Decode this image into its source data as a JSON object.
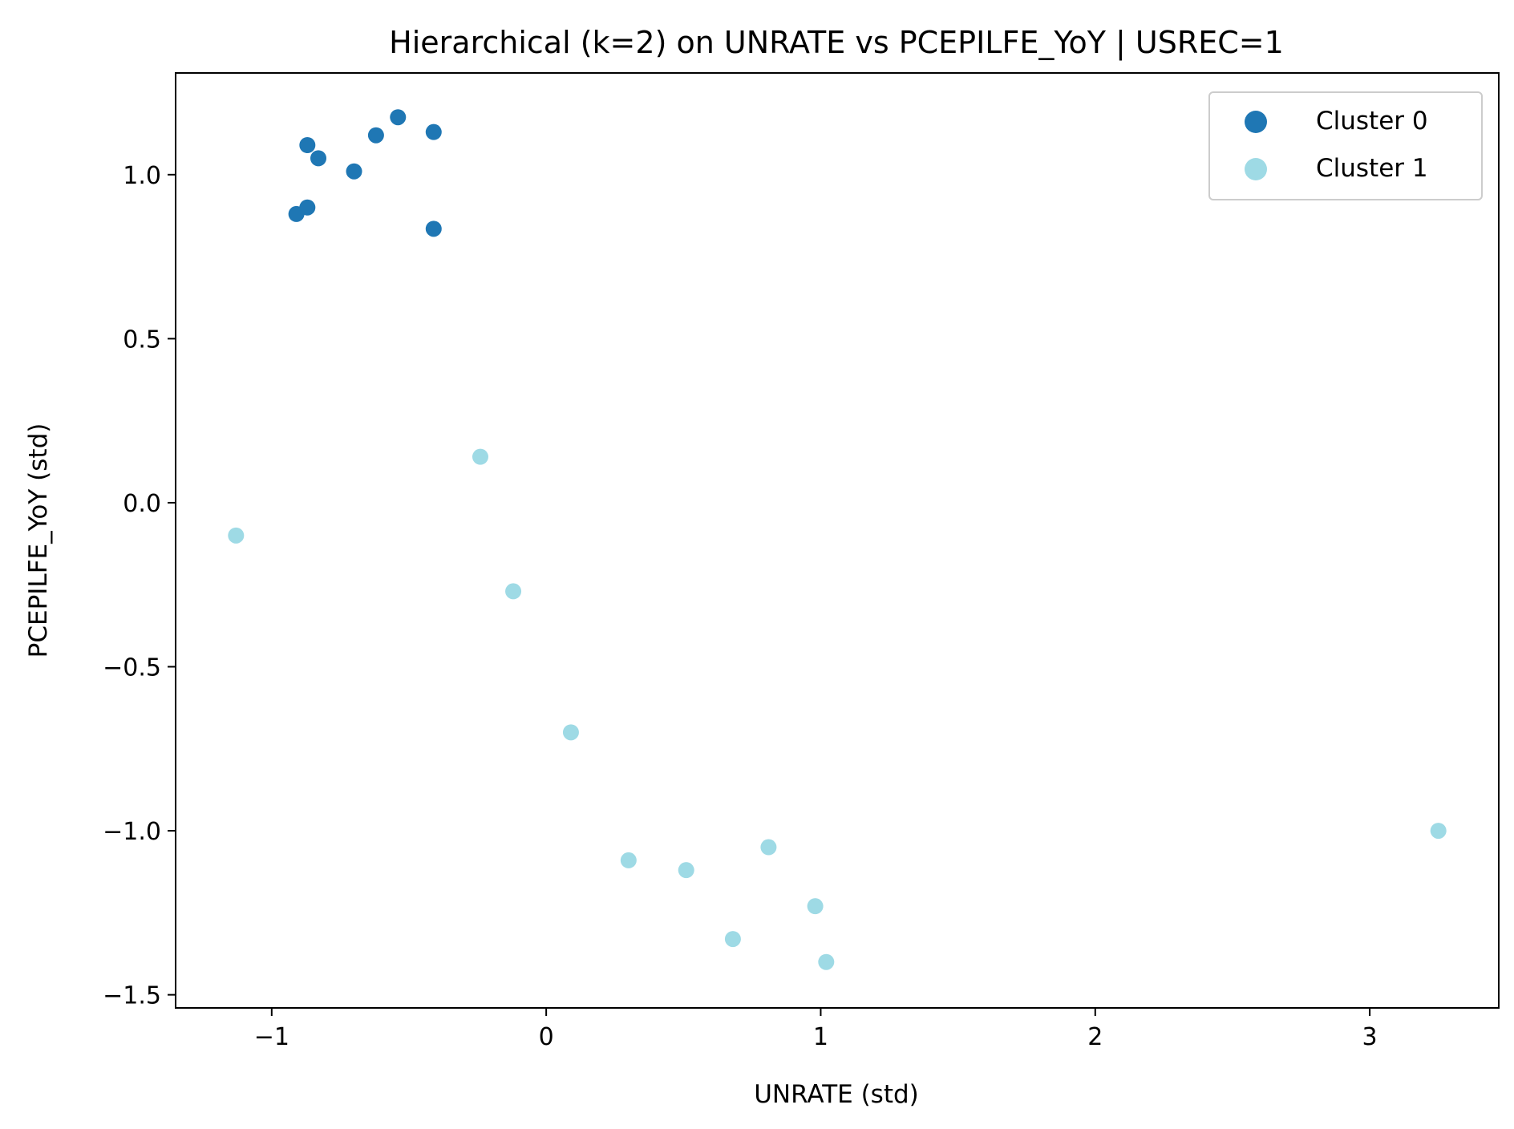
{
  "chart_data": {
    "type": "scatter",
    "title": "Hierarchical (k=2) on UNRATE vs PCEPILFE_YoY | USREC=1",
    "xlabel": "UNRATE (std)",
    "ylabel": "PCEPILFE_YoY (std)",
    "xlim": [
      -1.35,
      3.47
    ],
    "ylim": [
      -1.54,
      1.31
    ],
    "xticks": [
      -1,
      0,
      1,
      2,
      3
    ],
    "xtick_labels": [
      "−1",
      "0",
      "1",
      "2",
      "3"
    ],
    "yticks": [
      -1.5,
      -1.0,
      -0.5,
      0.0,
      0.5,
      1.0
    ],
    "ytick_labels": [
      "−1.5",
      "−1.0",
      "−0.5",
      "0.0",
      "0.5",
      "1.0"
    ],
    "grid": false,
    "legend_position": "top-right",
    "series": [
      {
        "name": "Cluster 0",
        "color": "#1f77b4",
        "points": [
          [
            -0.54,
            1.175
          ],
          [
            -0.41,
            1.13
          ],
          [
            -0.62,
            1.12
          ],
          [
            -0.87,
            1.09
          ],
          [
            -0.83,
            1.05
          ],
          [
            -0.7,
            1.01
          ],
          [
            -0.87,
            0.9
          ],
          [
            -0.91,
            0.88
          ],
          [
            -0.41,
            0.835
          ]
        ]
      },
      {
        "name": "Cluster 1",
        "color": "#9edae5",
        "points": [
          [
            -0.24,
            0.14
          ],
          [
            -1.13,
            -0.1
          ],
          [
            -0.12,
            -0.27
          ],
          [
            0.09,
            -0.7
          ],
          [
            0.3,
            -1.09
          ],
          [
            0.51,
            -1.12
          ],
          [
            0.81,
            -1.05
          ],
          [
            0.98,
            -1.23
          ],
          [
            0.68,
            -1.33
          ],
          [
            1.02,
            -1.4
          ],
          [
            3.25,
            -1.0
          ]
        ]
      }
    ]
  }
}
